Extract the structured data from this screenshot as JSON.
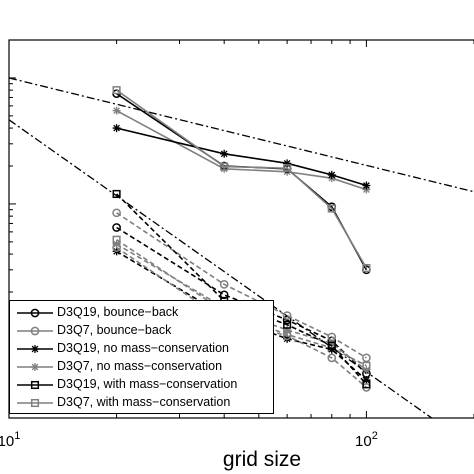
{
  "chart_data": {
    "type": "line",
    "xlabel": "grid size",
    "ylabel": "",
    "title": "",
    "x_scale": "log",
    "y_scale": "log",
    "xlim": [
      10,
      200
    ],
    "ylim": [
      0.0002,
      0.2
    ],
    "x_ticks": [
      {
        "value": 10,
        "base": "10",
        "exp": "1"
      },
      {
        "value": 100,
        "base": "10",
        "exp": "2"
      }
    ],
    "legend_position": "lower-left",
    "reference_lines": [
      {
        "style": "dash-dot",
        "points": [
          [
            10,
            0.1
          ],
          [
            200,
            0.0125
          ]
        ]
      },
      {
        "style": "dash-dot",
        "points": [
          [
            10,
            0.0465
          ],
          [
            200,
            0.000116
          ]
        ]
      }
    ],
    "series": [
      {
        "name": "D3Q19, bounce−back",
        "color": "#000000",
        "marker": "circle",
        "dash": "solid",
        "x": [
          20,
          40,
          60,
          80,
          100
        ],
        "y": [
          0.075,
          0.02,
          0.019,
          0.0095,
          0.003
        ]
      },
      {
        "name": "D3Q7, bounce−back",
        "color": "#7f7f7f",
        "marker": "circle",
        "dash": "dashed",
        "x": [
          20,
          40,
          60,
          80,
          100
        ],
        "y": [
          0.0085,
          0.0023,
          0.0013,
          0.00088,
          0.0006
        ]
      },
      {
        "name": "D3Q19, no mass−conservation",
        "color": "#000000",
        "marker": "star",
        "dash": "solid",
        "x": [
          20,
          40,
          60,
          80,
          100
        ],
        "y": [
          0.04,
          0.025,
          0.021,
          0.017,
          0.014
        ]
      },
      {
        "name": "D3Q7, no mass−conservation",
        "color": "#7f7f7f",
        "marker": "star",
        "dash": "dashed",
        "x": [
          20,
          40,
          60,
          80,
          100
        ],
        "y": [
          0.0048,
          0.0015,
          0.001,
          0.00078,
          0.00048
        ]
      },
      {
        "name": "D3Q19, with mass−conservation",
        "color": "#000000",
        "marker": "square",
        "dash": "dashed",
        "x": [
          20,
          40,
          60,
          80,
          100
        ],
        "y": [
          0.012,
          0.0017,
          0.0011,
          0.00075,
          0.00037
        ]
      },
      {
        "name": "D3Q7, with mass−conservation",
        "color": "#7f7f7f",
        "marker": "square",
        "dash": "solid",
        "x": [
          20,
          40,
          60,
          80,
          100
        ],
        "y": [
          0.08,
          0.0198,
          0.0192,
          0.0092,
          0.0031
        ]
      }
    ],
    "extra_series": [
      {
        "color": "#000000",
        "marker": "circle",
        "dash": "dashed",
        "x": [
          20,
          40,
          60,
          80,
          100
        ],
        "y": [
          0.0065,
          0.0019,
          0.0012,
          0.00082,
          0.00045
        ]
      },
      {
        "color": "#7f7f7f",
        "marker": "square",
        "dash": "dashed",
        "x": [
          20,
          40,
          60,
          80,
          100
        ],
        "y": [
          0.0052,
          0.0014,
          0.00092,
          0.00072,
          0.00052
        ]
      },
      {
        "color": "#000000",
        "marker": "star",
        "dash": "dashed",
        "x": [
          20,
          40,
          60,
          80,
          100
        ],
        "y": [
          0.0042,
          0.0013,
          0.00085,
          0.0007,
          0.0004
        ]
      },
      {
        "color": "#7f7f7f",
        "marker": "circle",
        "dash": "dashed",
        "x": [
          20,
          40,
          60,
          80,
          100
        ],
        "y": [
          0.0045,
          0.0012,
          0.0009,
          0.0006,
          0.00035
        ]
      },
      {
        "color": "#7f7f7f",
        "marker": "star",
        "dash": "solid",
        "x": [
          20,
          40,
          60,
          80,
          100
        ],
        "y": [
          0.055,
          0.019,
          0.018,
          0.016,
          0.013
        ]
      }
    ]
  }
}
